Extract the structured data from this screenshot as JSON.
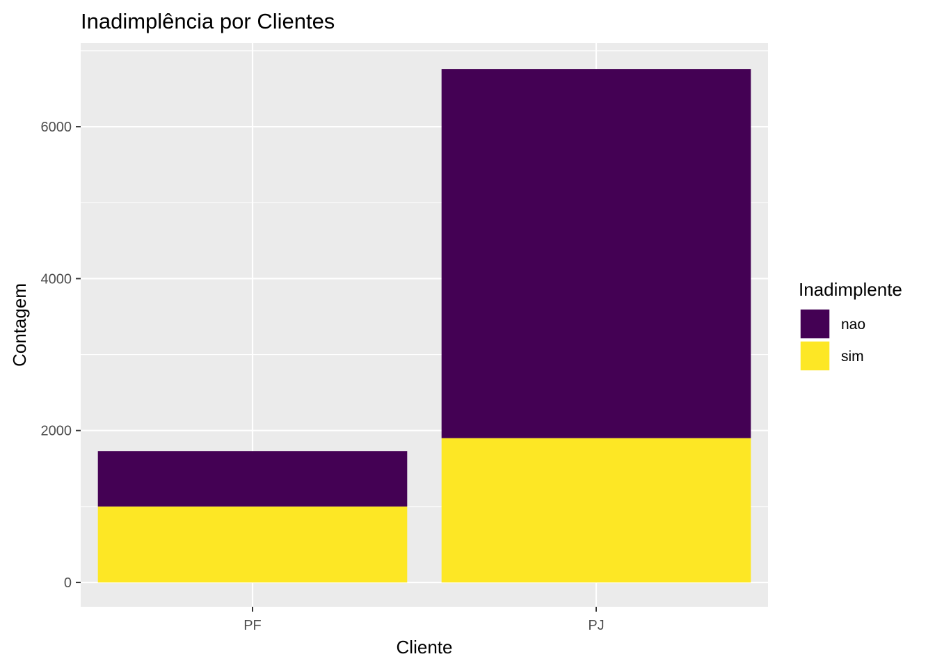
{
  "chart_data": {
    "type": "bar",
    "stacked": true,
    "title": "Inadimplência por Clientes",
    "xlabel": "Cliente",
    "ylabel": "Contagem",
    "categories": [
      "PF",
      "PJ"
    ],
    "series": [
      {
        "name": "nao",
        "values": [
          730,
          4860
        ],
        "color": "#440154"
      },
      {
        "name": "sim",
        "values": [
          1000,
          1900
        ],
        "color": "#FDE725"
      }
    ],
    "stack_order_bottom_to_top": [
      "sim",
      "nao"
    ],
    "ylim": [
      -320,
      7100
    ],
    "yticks": [
      0,
      2000,
      4000,
      6000
    ],
    "ytick_labels": [
      "0",
      "2000",
      "4000",
      "6000"
    ],
    "legend": {
      "title": "Inadimplente",
      "position": "right"
    },
    "grid": true,
    "panel_background": "#EBEBEB",
    "grid_color": "#FFFFFF"
  }
}
